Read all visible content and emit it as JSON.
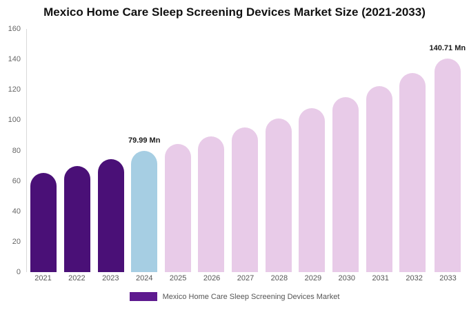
{
  "title": "Mexico Home Care Sleep Screening Devices Market Size (2021-2033)",
  "legend": {
    "label": "Mexico Home Care Sleep Screening Devices Market",
    "swatch_color": "#5e1a8f"
  },
  "colors": {
    "historical": "#4a1077",
    "highlight": "#a6cee3",
    "forecast": "#e8cbe8"
  },
  "chart_data": {
    "type": "bar",
    "title": "Mexico Home Care Sleep Screening Devices Market Size (2021-2033)",
    "xlabel": "",
    "ylabel": "",
    "ylim": [
      0,
      160
    ],
    "yticks": [
      0,
      20,
      40,
      60,
      80,
      100,
      120,
      140,
      160
    ],
    "grid": false,
    "legend_position": "bottom",
    "categories": [
      "2021",
      "2022",
      "2023",
      "2024",
      "2025",
      "2026",
      "2027",
      "2028",
      "2029",
      "2030",
      "2031",
      "2032",
      "2033"
    ],
    "values": [
      65.5,
      70,
      74.5,
      79.99,
      84.5,
      89.5,
      95,
      101,
      108,
      115,
      122.5,
      131,
      140.71
    ],
    "bar_color_keys": [
      "historical",
      "historical",
      "historical",
      "highlight",
      "forecast",
      "forecast",
      "forecast",
      "forecast",
      "forecast",
      "forecast",
      "forecast",
      "forecast",
      "forecast"
    ],
    "annotations": [
      {
        "category": "2024",
        "text": "79.99 Mn"
      },
      {
        "category": "2033",
        "text": "140.71 Mn"
      }
    ]
  }
}
